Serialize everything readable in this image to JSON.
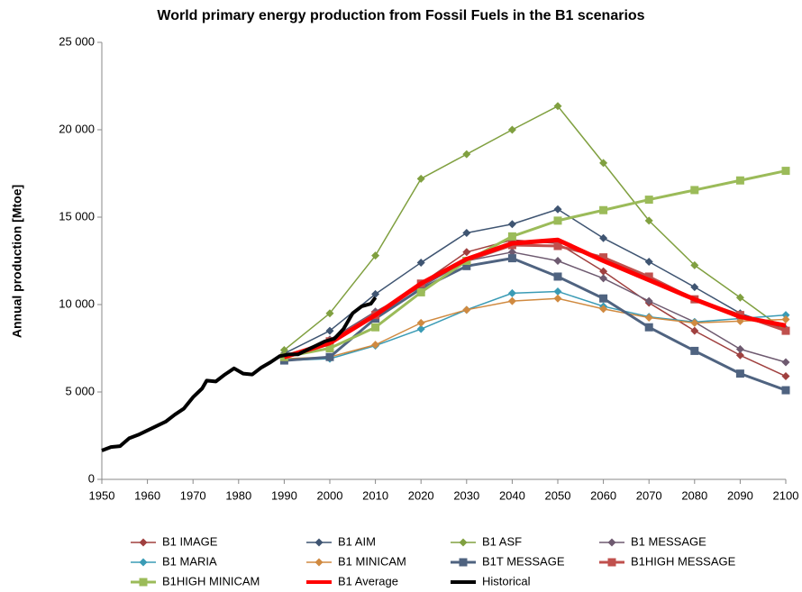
{
  "chart_data": {
    "type": "line",
    "title": "World primary energy production from Fossil Fuels in the B1 scenarios",
    "y_label": "Annual production [Mtoe]",
    "x": [
      1990,
      2000,
      2010,
      2020,
      2030,
      2040,
      2050,
      2060,
      2070,
      2080,
      2090,
      2100
    ],
    "xlim": [
      1950,
      2100
    ],
    "xticks": [
      1950,
      1960,
      1970,
      1980,
      1990,
      2000,
      2010,
      2020,
      2030,
      2040,
      2050,
      2060,
      2070,
      2080,
      2090,
      2100
    ],
    "ylim": [
      0,
      25000
    ],
    "yticks": [
      0,
      {
        "value": 5000,
        "label": "5 000"
      },
      {
        "value": 10000,
        "label": "10 000"
      },
      {
        "value": 15000,
        "label": "15 000"
      },
      {
        "value": 20000,
        "label": "20 000"
      },
      {
        "value": 25000,
        "label": "25 000"
      }
    ],
    "grid": false,
    "legend": "bottom",
    "series": [
      {
        "name": "B1 IMAGE",
        "color": "#a0403f",
        "marker": "diamond",
        "line_width": 1.5,
        "values": [
          7000,
          7800,
          9300,
          11200,
          13000,
          13700,
          13500,
          11900,
          10100,
          8500,
          7100,
          5900
        ]
      },
      {
        "name": "B1 AIM",
        "color": "#3f5572",
        "marker": "diamond",
        "line_width": 1.5,
        "values": [
          7200,
          8500,
          10600,
          12400,
          14100,
          14600,
          15450,
          13800,
          12450,
          11000,
          9500,
          8600
        ]
      },
      {
        "name": "B1 ASF",
        "color": "#80a040",
        "marker": "diamond",
        "line_width": 1.5,
        "values": [
          7400,
          9500,
          12800,
          17200,
          18600,
          20000,
          21350,
          18100,
          14800,
          12250,
          10400,
          8500
        ]
      },
      {
        "name": "B1 MESSAGE",
        "color": "#6e5a70",
        "marker": "diamond",
        "line_width": 1.5,
        "values": [
          7000,
          8000,
          9600,
          11000,
          12500,
          13000,
          12500,
          11500,
          10200,
          9000,
          7450,
          6700
        ]
      },
      {
        "name": "B1 MARIA",
        "color": "#3a9bb5",
        "marker": "diamond",
        "line_width": 1.5,
        "values": [
          6800,
          6900,
          7650,
          8600,
          9700,
          10650,
          10750,
          9900,
          9300,
          9000,
          9200,
          9400
        ]
      },
      {
        "name": "B1 MINICAM",
        "color": "#d08a40",
        "marker": "diamond",
        "line_width": 1.5,
        "values": [
          6900,
          7000,
          7700,
          8950,
          9700,
          10200,
          10350,
          9750,
          9250,
          8950,
          9050,
          9150
        ]
      },
      {
        "name": "B1T MESSAGE",
        "color": "#4f6380",
        "marker": "square",
        "line_width": 3,
        "values": [
          6800,
          7000,
          9200,
          10900,
          12200,
          12650,
          11600,
          10350,
          8700,
          7350,
          6050,
          5100
        ]
      },
      {
        "name": "B1HIGH MESSAGE",
        "color": "#c0504d",
        "marker": "square",
        "line_width": 3,
        "values": [
          7000,
          7900,
          9400,
          11200,
          12500,
          13400,
          13350,
          12700,
          11600,
          10300,
          9400,
          8500
        ]
      },
      {
        "name": "B1HIGH MINICAM",
        "color": "#9bbb59",
        "marker": "square",
        "line_width": 3,
        "values": [
          7000,
          7500,
          8700,
          10700,
          12500,
          13900,
          14800,
          15400,
          16000,
          16550,
          17100,
          17650
        ]
      },
      {
        "name": "B1 Average",
        "color": "#ff0000",
        "marker": "none",
        "line_width": 5,
        "values": [
          7000,
          7800,
          9400,
          11200,
          12600,
          13500,
          13700,
          12500,
          11400,
          10300,
          9300,
          8800
        ]
      },
      {
        "name": "Historical",
        "color": "#000000",
        "marker": "none",
        "line_width": 4,
        "x": [
          1950,
          1952,
          1954,
          1956,
          1958,
          1960,
          1962,
          1964,
          1966,
          1968,
          1970,
          1972,
          1973,
          1975,
          1977,
          1979,
          1981,
          1983,
          1985,
          1987,
          1989,
          1991,
          1993,
          1995,
          1997,
          1999,
          2001,
          2003,
          2005,
          2007,
          2009,
          2010
        ],
        "values": [
          1650,
          1850,
          1900,
          2350,
          2550,
          2800,
          3050,
          3300,
          3700,
          4050,
          4700,
          5200,
          5650,
          5600,
          6000,
          6350,
          6050,
          6000,
          6400,
          6700,
          7050,
          7150,
          7150,
          7400,
          7650,
          7900,
          8050,
          8600,
          9500,
          9900,
          10050,
          10400
        ]
      }
    ]
  }
}
